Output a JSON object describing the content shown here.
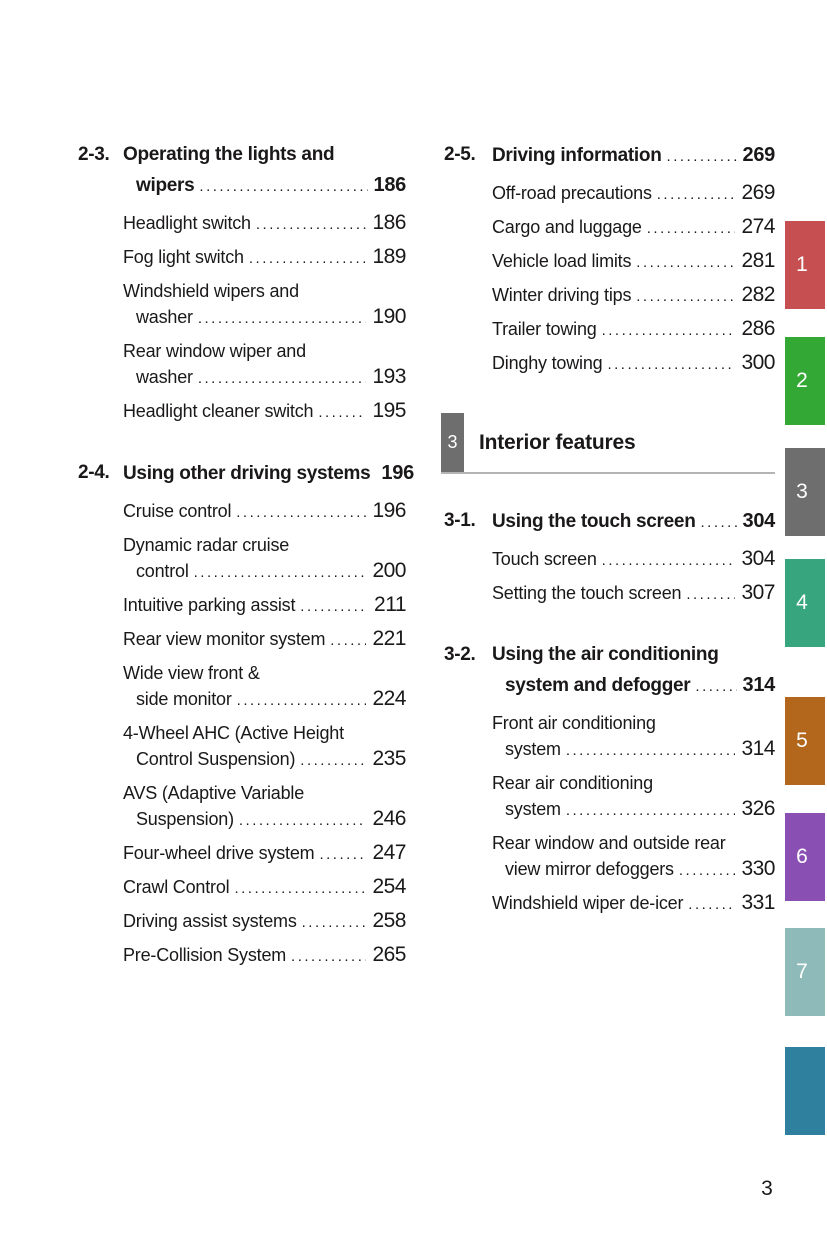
{
  "page": {
    "number": "3",
    "background": "#ffffff",
    "text_color": "#1a1819"
  },
  "toc": {
    "left_column": {
      "blocks": [
        {
          "type": "section",
          "id": "2-3.",
          "title_lines": [
            "Operating the lights and",
            "wipers"
          ],
          "page": "186",
          "items": [
            {
              "lines": [
                "Headlight switch"
              ],
              "page": "186"
            },
            {
              "lines": [
                "Fog light switch"
              ],
              "page": "189"
            },
            {
              "lines": [
                "Windshield wipers and",
                "washer"
              ],
              "page": "190"
            },
            {
              "lines": [
                "Rear window wiper and",
                "washer"
              ],
              "page": "193"
            },
            {
              "lines": [
                "Headlight cleaner switch"
              ],
              "page": "195"
            }
          ]
        },
        {
          "type": "section",
          "id": "2-4.",
          "title_lines": [
            "Using other driving systems"
          ],
          "page": "196",
          "items": [
            {
              "lines": [
                "Cruise control"
              ],
              "page": "196"
            },
            {
              "lines": [
                "Dynamic radar cruise",
                "control"
              ],
              "page": "200"
            },
            {
              "lines": [
                "Intuitive parking assist"
              ],
              "page": "211"
            },
            {
              "lines": [
                "Rear view monitor system"
              ],
              "page": "221"
            },
            {
              "lines": [
                "Wide view front &",
                "side monitor"
              ],
              "page": "224"
            },
            {
              "lines": [
                "4-Wheel AHC (Active Height",
                "Control Suspension)"
              ],
              "page": "235"
            },
            {
              "lines": [
                "AVS (Adaptive Variable",
                "Suspension)"
              ],
              "page": "246"
            },
            {
              "lines": [
                "Four-wheel drive system"
              ],
              "page": "247"
            },
            {
              "lines": [
                "Crawl Control"
              ],
              "page": "254"
            },
            {
              "lines": [
                "Driving assist systems"
              ],
              "page": "258"
            },
            {
              "lines": [
                "Pre-Collision System"
              ],
              "page": "265"
            }
          ]
        }
      ]
    },
    "right_column": {
      "blocks": [
        {
          "type": "section",
          "id": "2-5.",
          "title_lines": [
            "Driving information"
          ],
          "page": "269",
          "items": [
            {
              "lines": [
                "Off-road precautions"
              ],
              "page": "269"
            },
            {
              "lines": [
                "Cargo and luggage"
              ],
              "page": "274"
            },
            {
              "lines": [
                "Vehicle load limits"
              ],
              "page": "281"
            },
            {
              "lines": [
                "Winter driving tips"
              ],
              "page": "282"
            },
            {
              "lines": [
                "Trailer towing"
              ],
              "page": "286"
            },
            {
              "lines": [
                "Dinghy towing"
              ],
              "page": "300"
            }
          ]
        },
        {
          "type": "chapter",
          "number": "3",
          "title": "Interior features",
          "box_color": "#6e6e6e",
          "rule_color": "#b4b4b4"
        },
        {
          "type": "section",
          "id": "3-1.",
          "title_lines": [
            "Using the touch screen"
          ],
          "page": "304",
          "items": [
            {
              "lines": [
                "Touch screen"
              ],
              "page": "304"
            },
            {
              "lines": [
                "Setting the touch screen"
              ],
              "page": "307"
            }
          ]
        },
        {
          "type": "section",
          "id": "3-2.",
          "title_lines": [
            "Using the air conditioning",
            "system and defogger"
          ],
          "page": "314",
          "items": [
            {
              "lines": [
                "Front air conditioning",
                "system"
              ],
              "page": "314"
            },
            {
              "lines": [
                "Rear air conditioning",
                "system"
              ],
              "page": "326"
            },
            {
              "lines": [
                "Rear window and outside rear",
                "view mirror defoggers"
              ],
              "page": "330"
            },
            {
              "lines": [
                "Windshield wiper de-icer"
              ],
              "page": "331"
            }
          ]
        }
      ]
    }
  },
  "side_tabs": [
    {
      "label": "1",
      "color": "#c64f51"
    },
    {
      "label": "2",
      "color": "#34a834"
    },
    {
      "label": "3",
      "color": "#6e6e6e"
    },
    {
      "label": "4",
      "color": "#37a67e"
    },
    {
      "label": "5",
      "color": "#b3671c"
    },
    {
      "label": "6",
      "color": "#8a4fb2"
    },
    {
      "label": "7",
      "color": "#8fbaba"
    },
    {
      "label": "",
      "color": "#2f7f9e"
    }
  ]
}
